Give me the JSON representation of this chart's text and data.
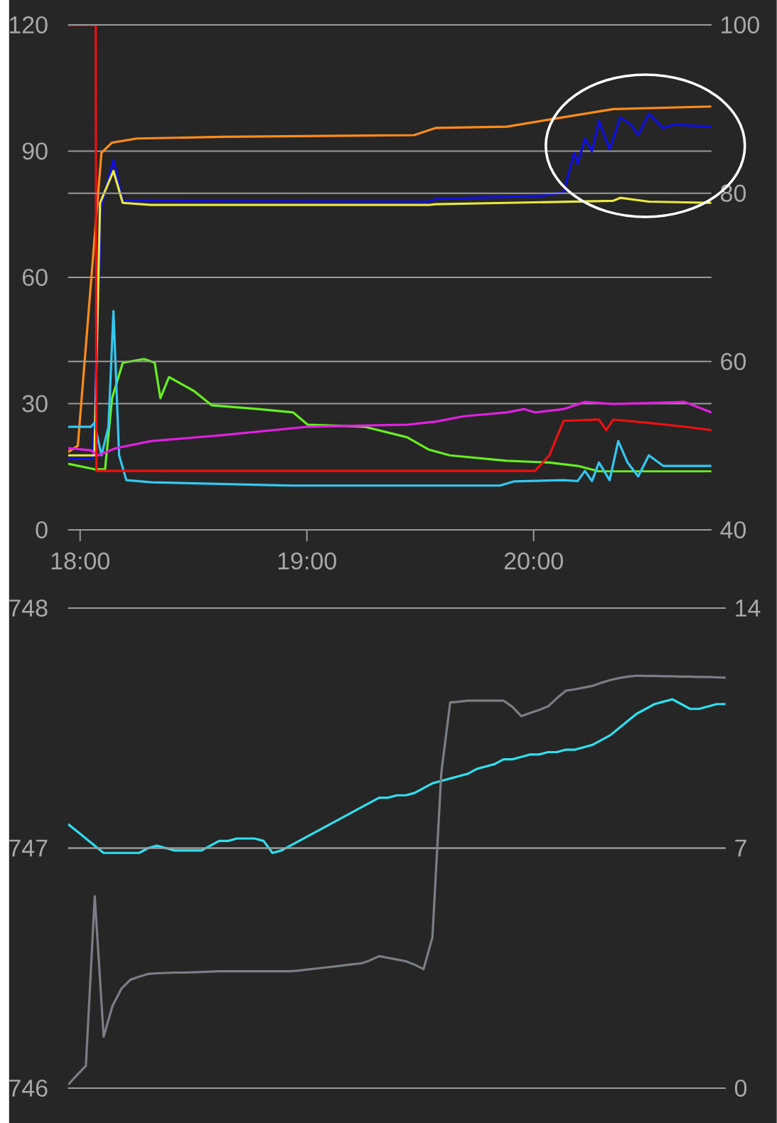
{
  "chart_data": [
    {
      "type": "line",
      "xlim": [
        17.947,
        20.784
      ],
      "xticks": [
        {
          "value": 18,
          "label": "18:00"
        },
        {
          "value": 19,
          "label": "19:00"
        },
        {
          "value": 20,
          "label": "20:00"
        }
      ],
      "ylim": [
        0,
        120
      ],
      "yticks": [
        0,
        30,
        60,
        90,
        120
      ],
      "y2lim": [
        40,
        100
      ],
      "y2ticks": [
        40,
        60,
        80,
        100
      ],
      "grid": "y",
      "series": [
        {
          "color": "#ff8c1a",
          "x": [
            17.947,
            17.99,
            18.094,
            18.14,
            18.25,
            18.627,
            19.473,
            19.567,
            19.881,
            20.069,
            20.351,
            20.784
          ],
          "values": [
            18.5,
            20,
            89.6,
            92,
            93,
            93.4,
            93.8,
            95.5,
            95.8,
            97.5,
            100,
            100.6
          ]
        },
        {
          "color": "#1010e0",
          "x": [
            17.947,
            18.056,
            18.094,
            18.147,
            18.188,
            19.536,
            19.567,
            20.038,
            20.132,
            20.179,
            20.194,
            20.226,
            20.257,
            20.288,
            20.335,
            20.382,
            20.429,
            20.461,
            20.508,
            20.539,
            20.571,
            20.618,
            20.784
          ],
          "values": [
            16.9,
            16.9,
            77,
            87.9,
            78.2,
            78,
            78.6,
            79.4,
            80.3,
            89.6,
            87,
            93,
            90,
            97.2,
            90.4,
            98,
            96.3,
            93.8,
            98.9,
            97.2,
            95.5,
            96.3,
            95.8
          ]
        },
        {
          "color": "#e8e840",
          "x": [
            17.947,
            18.063,
            18.088,
            18.147,
            18.188,
            18.314,
            19.536,
            19.567,
            19.881,
            20.351,
            20.382,
            20.508,
            20.784
          ],
          "values": [
            17.7,
            17.7,
            77.7,
            85.3,
            77.7,
            77.2,
            77.2,
            77.4,
            77.7,
            78.2,
            78.9,
            78,
            77.7
          ]
        },
        {
          "color": "#66ee22",
          "x": [
            17.947,
            18.063,
            18.11,
            18.141,
            18.188,
            18.282,
            18.329,
            18.354,
            18.392,
            18.502,
            18.58,
            18.784,
            18.94,
            19.003,
            19.254,
            19.442,
            19.536,
            19.63,
            19.881,
            20.069,
            20.194,
            20.288,
            20.784
          ],
          "values": [
            15.7,
            14.4,
            14.4,
            31.3,
            39.7,
            40.6,
            39.7,
            31.3,
            36.3,
            33,
            29.6,
            28.7,
            27.9,
            25,
            24.5,
            22,
            19.1,
            17.7,
            16.4,
            16,
            15.2,
            13.9,
            13.9
          ]
        },
        {
          "color": "#33c8f0",
          "x": [
            17.947,
            18.047,
            18.063,
            18.094,
            18.125,
            18.147,
            18.172,
            18.204,
            18.314,
            18.94,
            19.567,
            19.85,
            19.912,
            20.132,
            20.194,
            20.226,
            20.257,
            20.288,
            20.335,
            20.373,
            20.414,
            20.461,
            20.508,
            20.571,
            20.784
          ],
          "values": [
            24.5,
            24.5,
            25.4,
            17.7,
            24.5,
            52,
            17.7,
            11.8,
            11.3,
            10.5,
            10.5,
            10.5,
            11.5,
            11.8,
            11.6,
            14,
            11.6,
            16,
            11.8,
            21.1,
            16,
            12.7,
            17.7,
            15.2,
            15.2
          ]
        },
        {
          "color": "#e020e0",
          "x": [
            17.947,
            18.047,
            18.078,
            18.157,
            18.314,
            18.627,
            19.003,
            19.442,
            19.567,
            19.693,
            19.881,
            19.959,
            20.006,
            20.132,
            20.226,
            20.351,
            20.665,
            20.784
          ],
          "values": [
            19.4,
            18.9,
            17.7,
            19.4,
            21.1,
            22.5,
            24.5,
            25,
            25.7,
            27,
            27.9,
            28.7,
            27.9,
            28.7,
            30.4,
            29.9,
            30.4,
            27.9
          ]
        },
        {
          "color": "#ee1111",
          "x": [
            17.947,
            18.069,
            18.072,
            20.006,
            20.069,
            20.132,
            20.288,
            20.32,
            20.351,
            20.508,
            20.665,
            20.784
          ],
          "values": [
            120,
            120,
            14,
            14,
            17.7,
            25.9,
            26.2,
            23.7,
            26.2,
            25.4,
            24.5,
            23.7
          ]
        }
      ]
    },
    {
      "type": "line",
      "categories": [
        null,
        null,
        null,
        null,
        null,
        null,
        null,
        null,
        null,
        null,
        null,
        null,
        null,
        null,
        null,
        null,
        null,
        null,
        null,
        null,
        null,
        null,
        null,
        null,
        null,
        null,
        null,
        null,
        null,
        null,
        null,
        null,
        null,
        null,
        null,
        null,
        null,
        null,
        null,
        null,
        null,
        null,
        null,
        null,
        null,
        null,
        null,
        null,
        null,
        null,
        null,
        null,
        null,
        null,
        null,
        null,
        null,
        null,
        null,
        null,
        null,
        null,
        null,
        null,
        null,
        null,
        null,
        null,
        null,
        null,
        null,
        null,
        null,
        null,
        null
      ],
      "tick_labels": "y",
      "ylim": [
        746,
        748
      ],
      "yticks": [
        746,
        747,
        748
      ],
      "y2lim": [
        0,
        14
      ],
      "y2ticks": [
        0,
        7,
        14
      ],
      "grid": "y",
      "series": [
        {
          "color": "#30e0f0",
          "values": [
            747.1,
            747.07,
            747.04,
            747.01,
            746.98,
            746.98,
            746.98,
            746.98,
            746.98,
            747.0,
            747.01,
            747.0,
            746.99,
            746.99,
            746.99,
            746.99,
            747.01,
            747.03,
            747.03,
            747.04,
            747.04,
            747.04,
            747.03,
            746.98,
            746.99,
            747.01,
            747.03,
            747.05,
            747.07,
            747.09,
            747.11,
            747.13,
            747.15,
            747.17,
            747.19,
            747.21,
            747.21,
            747.22,
            747.22,
            747.23,
            747.25,
            747.27,
            747.28,
            747.29,
            747.3,
            747.31,
            747.33,
            747.34,
            747.35,
            747.37,
            747.37,
            747.38,
            747.39,
            747.39,
            747.4,
            747.4,
            747.41,
            747.41,
            747.42,
            747.43,
            747.45,
            747.47,
            747.5,
            747.53,
            747.56,
            747.58,
            747.6,
            747.61,
            747.62,
            747.6,
            747.58,
            747.58,
            747.59,
            747.6,
            747.6
          ]
        },
        {
          "color": "#7a7e85",
          "axis": "y2",
          "values": [
            0.1,
            0.38,
            0.65,
            5.6,
            1.5,
            2.4,
            2.9,
            3.16,
            3.25,
            3.33,
            3.35,
            3.36,
            3.37,
            3.37,
            3.38,
            3.39,
            3.4,
            3.41,
            3.41,
            3.41,
            3.41,
            3.41,
            3.41,
            3.41,
            3.41,
            3.41,
            3.43,
            3.46,
            3.49,
            3.52,
            3.55,
            3.58,
            3.61,
            3.64,
            3.73,
            3.85,
            3.8,
            3.75,
            3.7,
            3.6,
            3.47,
            4.4,
            9.2,
            11.25,
            11.27,
            11.3,
            11.3,
            11.3,
            11.3,
            11.3,
            11.12,
            10.85,
            10.94,
            11.03,
            11.13,
            11.37,
            11.59,
            11.63,
            11.68,
            11.73,
            11.82,
            11.9,
            11.96,
            12.0,
            12.03,
            12.02,
            12.02,
            12.01,
            12.01,
            12.0,
            12.0,
            11.99,
            11.99,
            11.98,
            11.97
          ]
        }
      ]
    }
  ]
}
